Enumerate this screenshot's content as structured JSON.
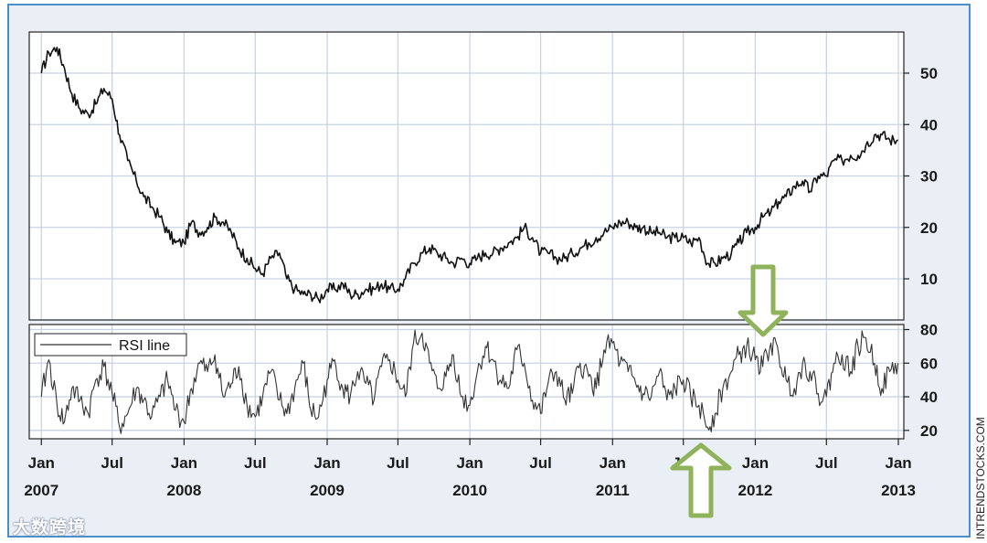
{
  "credit": "INTRENDSTOCKS.COM",
  "watermark": "大数跨境",
  "colors": {
    "frame": "#4a8fc9",
    "background": "#eaeff6",
    "plot_bg": "#ffffff",
    "grid": "#c8d3e6",
    "line": "#111111",
    "arrow_fill": "#ffffff",
    "arrow_stroke": "#8fb35a"
  },
  "chart_data": [
    {
      "type": "line",
      "name": "price",
      "x_ticks": [
        {
          "date": "2007-01",
          "label": "Jan",
          "sub": "2007"
        },
        {
          "date": "2007-07",
          "label": "Jul",
          "sub": ""
        },
        {
          "date": "2008-01",
          "label": "Jan",
          "sub": "2008"
        },
        {
          "date": "2008-07",
          "label": "Jul",
          "sub": ""
        },
        {
          "date": "2009-01",
          "label": "Jan",
          "sub": "2009"
        },
        {
          "date": "2009-07",
          "label": "Jul",
          "sub": ""
        },
        {
          "date": "2010-01",
          "label": "Jan",
          "sub": "2010"
        },
        {
          "date": "2010-07",
          "label": "Jul",
          "sub": ""
        },
        {
          "date": "2011-01",
          "label": "Jan",
          "sub": "2011"
        },
        {
          "date": "2011-07",
          "label": "Jul",
          "sub": ""
        },
        {
          "date": "2012-01",
          "label": "Jan",
          "sub": "2012"
        },
        {
          "date": "2012-07",
          "label": "Jul",
          "sub": ""
        },
        {
          "date": "2013-01",
          "label": "Jan",
          "sub": "2013"
        }
      ],
      "xlim": [
        "2006-12-01",
        "2013-01-15"
      ],
      "y_ticks": [
        10,
        20,
        30,
        40,
        50
      ],
      "ylim": [
        2,
        58
      ],
      "grid": true,
      "x": [
        "2007-01-01",
        "2007-01-20",
        "2007-02-10",
        "2007-03-01",
        "2007-03-20",
        "2007-04-10",
        "2007-05-01",
        "2007-05-20",
        "2007-06-10",
        "2007-07-01",
        "2007-07-20",
        "2007-08-10",
        "2007-09-01",
        "2007-09-20",
        "2007-10-10",
        "2007-11-01",
        "2007-11-20",
        "2007-12-10",
        "2008-01-01",
        "2008-01-20",
        "2008-02-10",
        "2008-03-01",
        "2008-03-20",
        "2008-04-10",
        "2008-05-01",
        "2008-05-20",
        "2008-06-10",
        "2008-07-01",
        "2008-07-20",
        "2008-08-10",
        "2008-09-01",
        "2008-09-20",
        "2008-10-10",
        "2008-11-01",
        "2008-11-20",
        "2008-12-10",
        "2009-01-01",
        "2009-01-20",
        "2009-02-10",
        "2009-03-01",
        "2009-03-20",
        "2009-04-10",
        "2009-05-01",
        "2009-05-20",
        "2009-06-10",
        "2009-07-01",
        "2009-07-20",
        "2009-08-10",
        "2009-09-01",
        "2009-09-20",
        "2009-10-10",
        "2009-11-01",
        "2009-11-20",
        "2009-12-10",
        "2010-01-01",
        "2010-01-20",
        "2010-02-10",
        "2010-03-01",
        "2010-03-20",
        "2010-04-10",
        "2010-05-01",
        "2010-05-20",
        "2010-06-10",
        "2010-07-01",
        "2010-07-20",
        "2010-08-10",
        "2010-09-01",
        "2010-09-20",
        "2010-10-10",
        "2010-11-01",
        "2010-11-20",
        "2010-12-10",
        "2011-01-01",
        "2011-01-20",
        "2011-02-10",
        "2011-03-01",
        "2011-03-20",
        "2011-04-10",
        "2011-05-01",
        "2011-05-20",
        "2011-06-10",
        "2011-07-01",
        "2011-07-20",
        "2011-08-10",
        "2011-09-01",
        "2011-09-20",
        "2011-10-10",
        "2011-11-01",
        "2011-11-20",
        "2011-12-10",
        "2012-01-01",
        "2012-01-20",
        "2012-02-10",
        "2012-03-01",
        "2012-03-20",
        "2012-04-10",
        "2012-05-01",
        "2012-05-20",
        "2012-06-10",
        "2012-07-01",
        "2012-07-20",
        "2012-08-10",
        "2012-09-01",
        "2012-09-20",
        "2012-10-10",
        "2012-11-01",
        "2012-11-20",
        "2012-12-10",
        "2012-12-31"
      ],
      "y": [
        50,
        54,
        55,
        51,
        46,
        43,
        42,
        44,
        47,
        45,
        38,
        33,
        29,
        26,
        24,
        22,
        19,
        17,
        17,
        21,
        19,
        20,
        22,
        21,
        19,
        16,
        14,
        12,
        11,
        14,
        15,
        10,
        8,
        7,
        7,
        6,
        8,
        8,
        9,
        7,
        7,
        8,
        8,
        9,
        8,
        8,
        10,
        13,
        15,
        16,
        15,
        14,
        13,
        14,
        13,
        14,
        15,
        15,
        16,
        17,
        18,
        20,
        18,
        15,
        15,
        14,
        14,
        15,
        16,
        17,
        18,
        19,
        20,
        21,
        21,
        20,
        20,
        19,
        19,
        18,
        18,
        18,
        17,
        18,
        13,
        13,
        14,
        15,
        17,
        19,
        20,
        22,
        23,
        25,
        26,
        28,
        29,
        27,
        30,
        30,
        33,
        33,
        34,
        34,
        36,
        38,
        38,
        37,
        37
      ]
    },
    {
      "type": "line",
      "name": "RSI line",
      "y_ticks": [
        20,
        40,
        60,
        80
      ],
      "ylim": [
        15,
        83
      ],
      "grid": true,
      "legend": "top-left",
      "x": [
        "2007-01-01",
        "2007-01-20",
        "2007-02-10",
        "2007-03-01",
        "2007-03-20",
        "2007-04-10",
        "2007-05-01",
        "2007-05-20",
        "2007-06-10",
        "2007-07-01",
        "2007-07-20",
        "2007-08-10",
        "2007-09-01",
        "2007-09-20",
        "2007-10-10",
        "2007-11-01",
        "2007-11-20",
        "2007-12-10",
        "2008-01-01",
        "2008-01-20",
        "2008-02-10",
        "2008-03-01",
        "2008-03-20",
        "2008-04-10",
        "2008-05-01",
        "2008-05-20",
        "2008-06-10",
        "2008-07-01",
        "2008-07-20",
        "2008-08-10",
        "2008-09-01",
        "2008-09-20",
        "2008-10-10",
        "2008-11-01",
        "2008-11-20",
        "2008-12-10",
        "2009-01-01",
        "2009-01-20",
        "2009-02-10",
        "2009-03-01",
        "2009-03-20",
        "2009-04-10",
        "2009-05-01",
        "2009-05-20",
        "2009-06-10",
        "2009-07-01",
        "2009-07-20",
        "2009-08-10",
        "2009-09-01",
        "2009-09-20",
        "2009-10-10",
        "2009-11-01",
        "2009-11-20",
        "2009-12-10",
        "2010-01-01",
        "2010-01-20",
        "2010-02-10",
        "2010-03-01",
        "2010-03-20",
        "2010-04-10",
        "2010-05-01",
        "2010-05-20",
        "2010-06-10",
        "2010-07-01",
        "2010-07-20",
        "2010-08-10",
        "2010-09-01",
        "2010-09-20",
        "2010-10-10",
        "2010-11-01",
        "2010-11-20",
        "2010-12-10",
        "2011-01-01",
        "2011-01-20",
        "2011-02-10",
        "2011-03-01",
        "2011-03-20",
        "2011-04-10",
        "2011-05-01",
        "2011-05-20",
        "2011-06-10",
        "2011-07-01",
        "2011-07-20",
        "2011-08-10",
        "2011-09-01",
        "2011-09-20",
        "2011-10-10",
        "2011-11-01",
        "2011-11-20",
        "2011-12-10",
        "2012-01-01",
        "2012-01-20",
        "2012-02-10",
        "2012-03-01",
        "2012-03-20",
        "2012-04-10",
        "2012-05-01",
        "2012-05-20",
        "2012-06-10",
        "2012-07-01",
        "2012-07-20",
        "2012-08-10",
        "2012-09-01",
        "2012-09-20",
        "2012-10-10",
        "2012-11-01",
        "2012-11-20",
        "2012-12-10",
        "2012-12-31"
      ],
      "y": [
        40,
        62,
        35,
        25,
        45,
        38,
        30,
        50,
        58,
        42,
        22,
        30,
        45,
        38,
        28,
        40,
        50,
        32,
        25,
        45,
        60,
        55,
        65,
        40,
        48,
        58,
        35,
        28,
        40,
        55,
        38,
        30,
        45,
        60,
        32,
        28,
        50,
        62,
        45,
        40,
        55,
        48,
        38,
        58,
        62,
        50,
        40,
        72,
        78,
        60,
        45,
        52,
        65,
        40,
        35,
        55,
        70,
        62,
        50,
        45,
        68,
        60,
        38,
        30,
        48,
        55,
        38,
        42,
        60,
        52,
        45,
        68,
        72,
        60,
        55,
        48,
        42,
        40,
        55,
        38,
        45,
        50,
        40,
        35,
        22,
        30,
        45,
        55,
        65,
        70,
        62,
        58,
        72,
        65,
        50,
        45,
        60,
        55,
        42,
        40,
        60,
        65,
        55,
        70,
        75,
        60,
        45,
        55,
        60
      ]
    }
  ]
}
